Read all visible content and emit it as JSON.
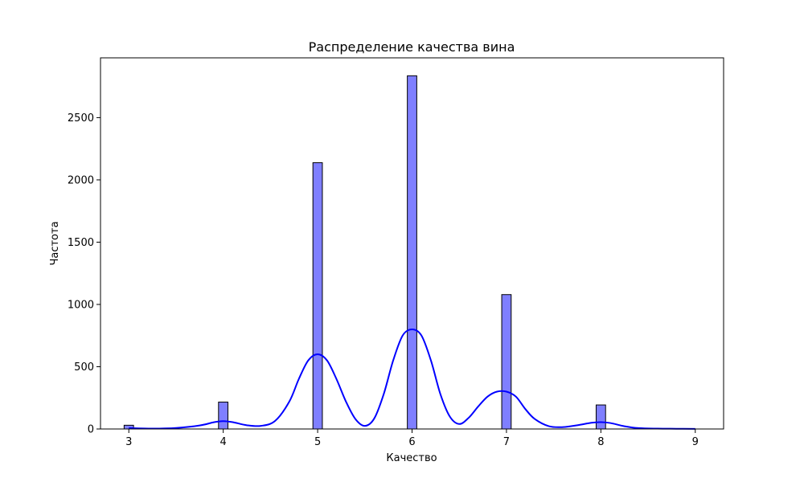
{
  "chart_data": {
    "type": "bar",
    "title": "Распределение качества вина",
    "xlabel": "Качество",
    "ylabel": "Частота",
    "xlim": [
      2.7,
      9.3
    ],
    "ylim": [
      0,
      2980
    ],
    "xticks": [
      3,
      4,
      5,
      6,
      7,
      8,
      9
    ],
    "yticks": [
      0,
      500,
      1000,
      1500,
      2000,
      2500
    ],
    "grid": false,
    "legend": "none",
    "bar_color": "#0000ff",
    "bar_opacity": 0.5,
    "bar_edge_color": "#000000",
    "kde_color": "#0000ff",
    "bin_width": 0.1,
    "bars": [
      {
        "x": 3,
        "value": 30
      },
      {
        "x": 4,
        "value": 216
      },
      {
        "x": 5,
        "value": 2138
      },
      {
        "x": 6,
        "value": 2836
      },
      {
        "x": 7,
        "value": 1079
      },
      {
        "x": 8,
        "value": 193
      }
    ],
    "kde": {
      "x": [
        3.0,
        3.25,
        3.5,
        3.75,
        3.9,
        4.0,
        4.1,
        4.25,
        4.4,
        4.55,
        4.7,
        4.8,
        4.9,
        5.0,
        5.1,
        5.2,
        5.3,
        5.4,
        5.5,
        5.6,
        5.7,
        5.8,
        5.9,
        6.0,
        6.1,
        6.2,
        6.3,
        6.4,
        6.5,
        6.6,
        6.7,
        6.8,
        6.9,
        7.0,
        7.1,
        7.2,
        7.3,
        7.45,
        7.6,
        7.75,
        7.9,
        8.0,
        8.1,
        8.25,
        8.4,
        8.6,
        8.8,
        9.0
      ],
      "y": [
        7,
        3,
        8,
        28,
        54,
        63,
        55,
        30,
        25,
        65,
        220,
        400,
        550,
        600,
        550,
        400,
        220,
        80,
        25,
        85,
        280,
        550,
        750,
        800,
        750,
        550,
        280,
        100,
        40,
        90,
        180,
        260,
        300,
        300,
        260,
        160,
        80,
        22,
        15,
        30,
        50,
        55,
        48,
        22,
        7,
        3,
        2,
        1
      ]
    }
  }
}
